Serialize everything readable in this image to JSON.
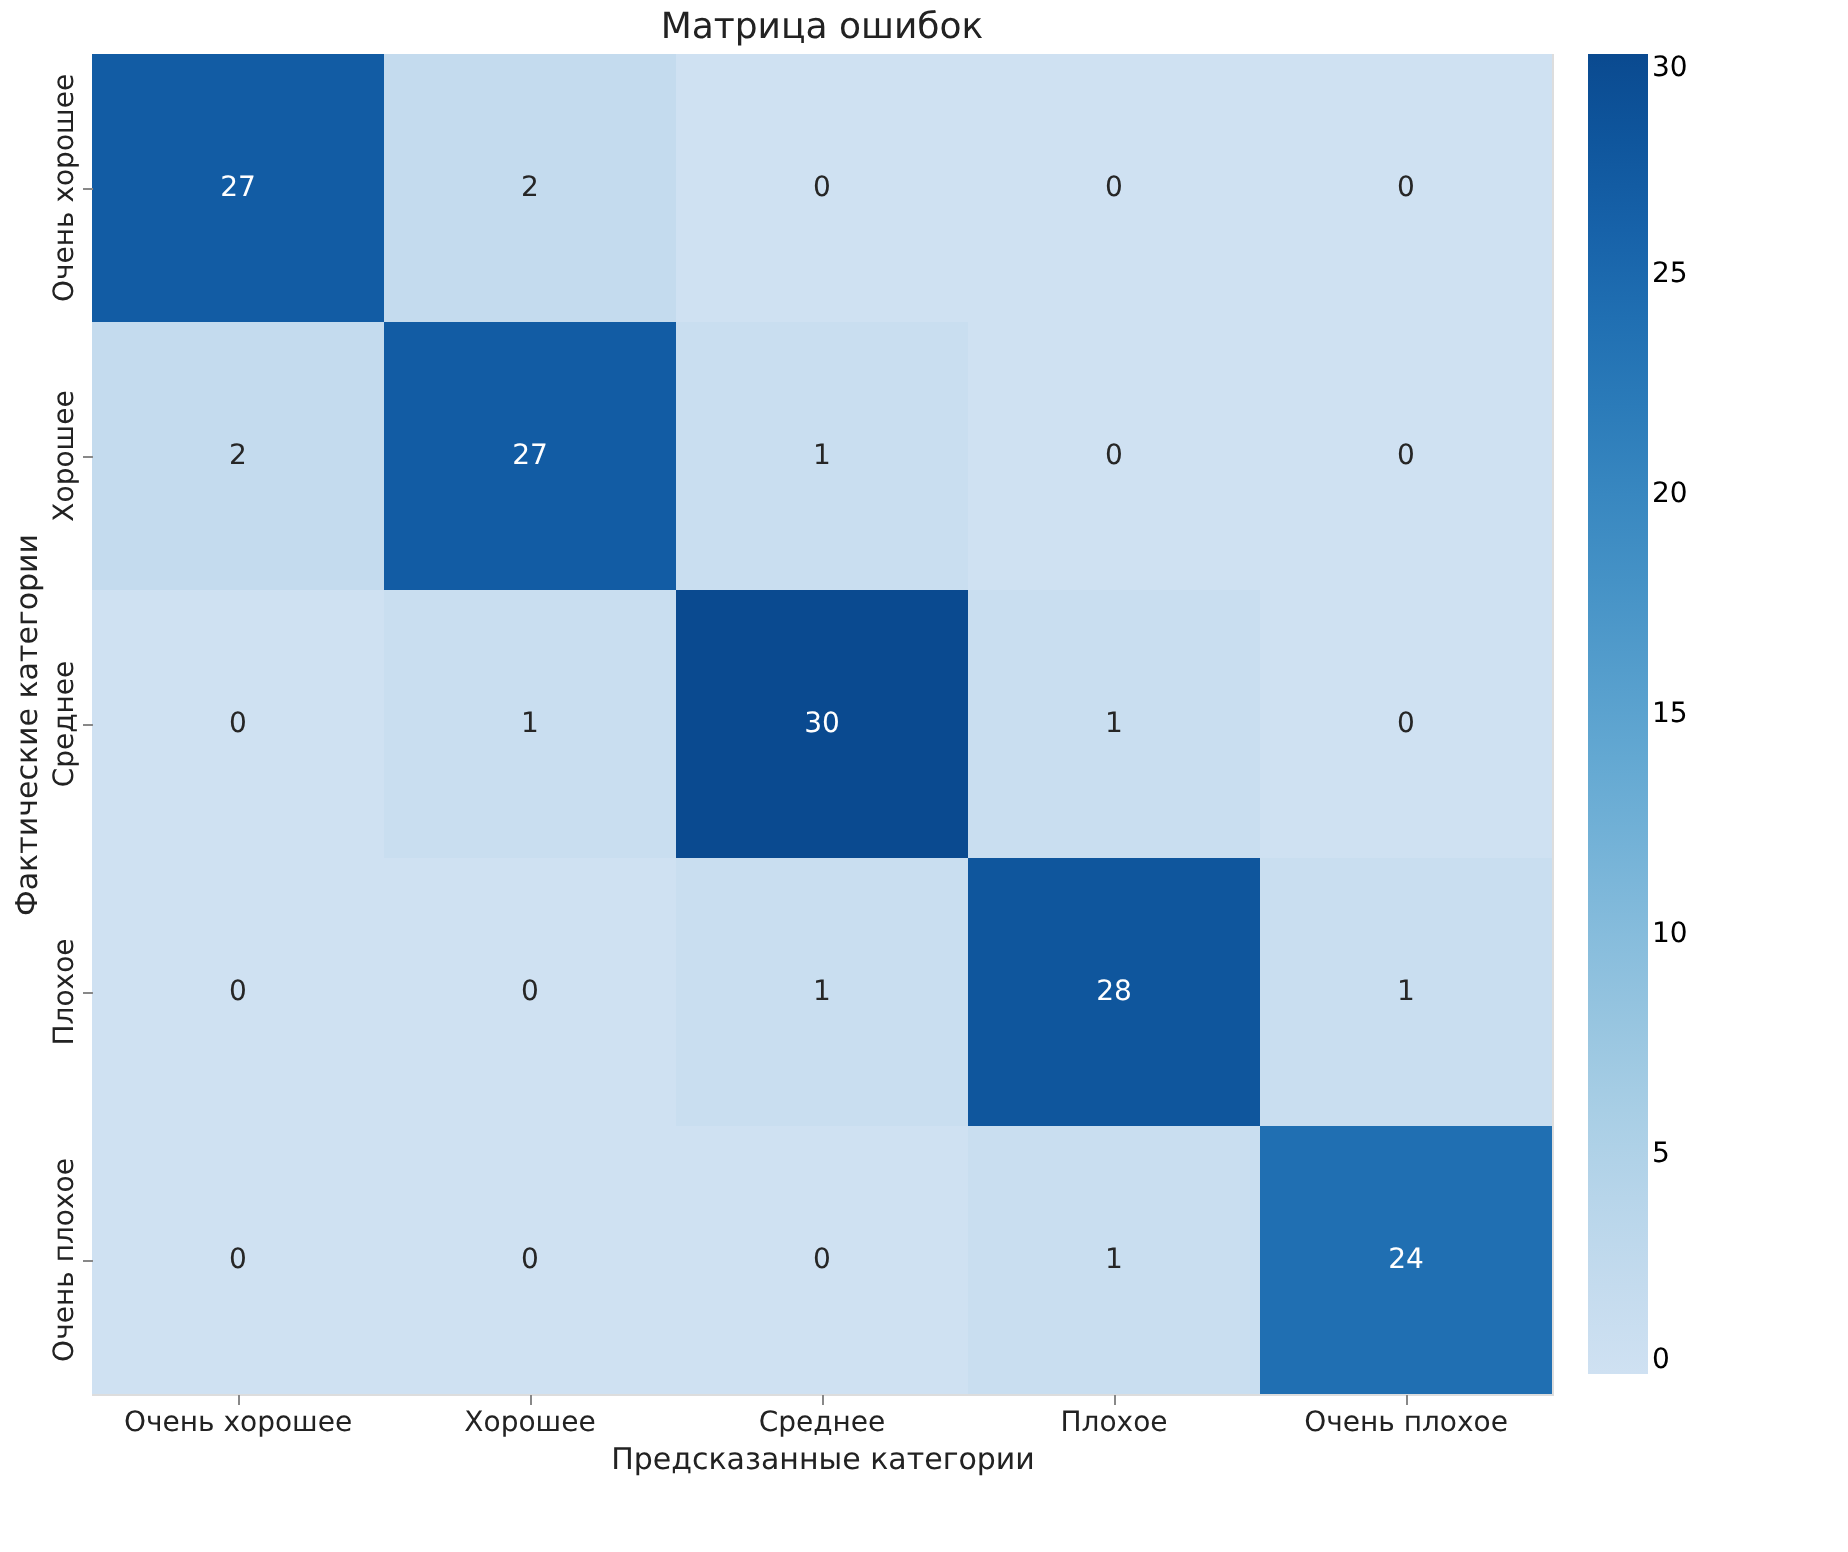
{
  "chart_data": {
    "type": "heatmap",
    "title": "Матрица ошибок",
    "xlabel": "Предсказанные категории",
    "ylabel": "Фактические категории",
    "categories": [
      "Очень хорошее",
      "Хорошее",
      "Среднее",
      "Плохое",
      "Очень плохое"
    ],
    "y_categories": [
      "Очень хорошее",
      "Хорошее",
      "Среднее",
      "Плохое",
      "Очень плохое"
    ],
    "cells": [
      [
        27,
        2,
        0,
        0,
        0
      ],
      [
        2,
        27,
        1,
        0,
        0
      ],
      [
        0,
        1,
        30,
        1,
        0
      ],
      [
        0,
        0,
        1,
        28,
        1
      ],
      [
        0,
        0,
        0,
        1,
        24
      ]
    ],
    "data_labels": true,
    "clim": [
      0,
      30
    ],
    "cticks": [
      0,
      5,
      10,
      15,
      20,
      25,
      30
    ]
  }
}
